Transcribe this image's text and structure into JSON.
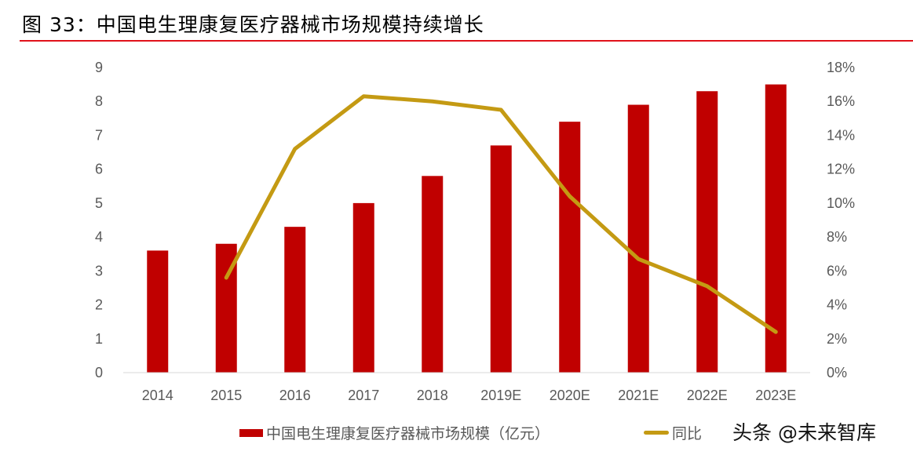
{
  "title": "图 33：中国电生理康复医疗器械市场规模持续增长",
  "watermark": "头条 @未来智库",
  "chart_data": {
    "type": "bar",
    "categories": [
      "2014",
      "2015",
      "2016",
      "2017",
      "2018",
      "2019E",
      "2020E",
      "2021E",
      "2022E",
      "2023E"
    ],
    "series": [
      {
        "name": "中国电生理康复医疗器械市场规模（亿元）",
        "type": "bar",
        "axis": "left",
        "color": "#C00000",
        "values": [
          3.6,
          3.8,
          4.3,
          5.0,
          5.8,
          6.7,
          7.4,
          7.9,
          8.3,
          8.5
        ]
      },
      {
        "name": "同比",
        "type": "line",
        "axis": "right",
        "color": "#C49A13",
        "values": [
          null,
          5.6,
          13.2,
          16.3,
          16.0,
          15.5,
          10.4,
          6.7,
          5.1,
          2.4
        ]
      }
    ],
    "y_left": {
      "range": [
        0,
        9
      ],
      "ticks": [
        "0",
        "1",
        "2",
        "3",
        "4",
        "5",
        "6",
        "7",
        "8",
        "9"
      ]
    },
    "y_right": {
      "range": [
        0,
        18
      ],
      "ticks": [
        "0%",
        "2%",
        "4%",
        "6%",
        "8%",
        "10%",
        "12%",
        "14%",
        "16%",
        "18%"
      ]
    },
    "grid": false,
    "legend": "bottom"
  }
}
